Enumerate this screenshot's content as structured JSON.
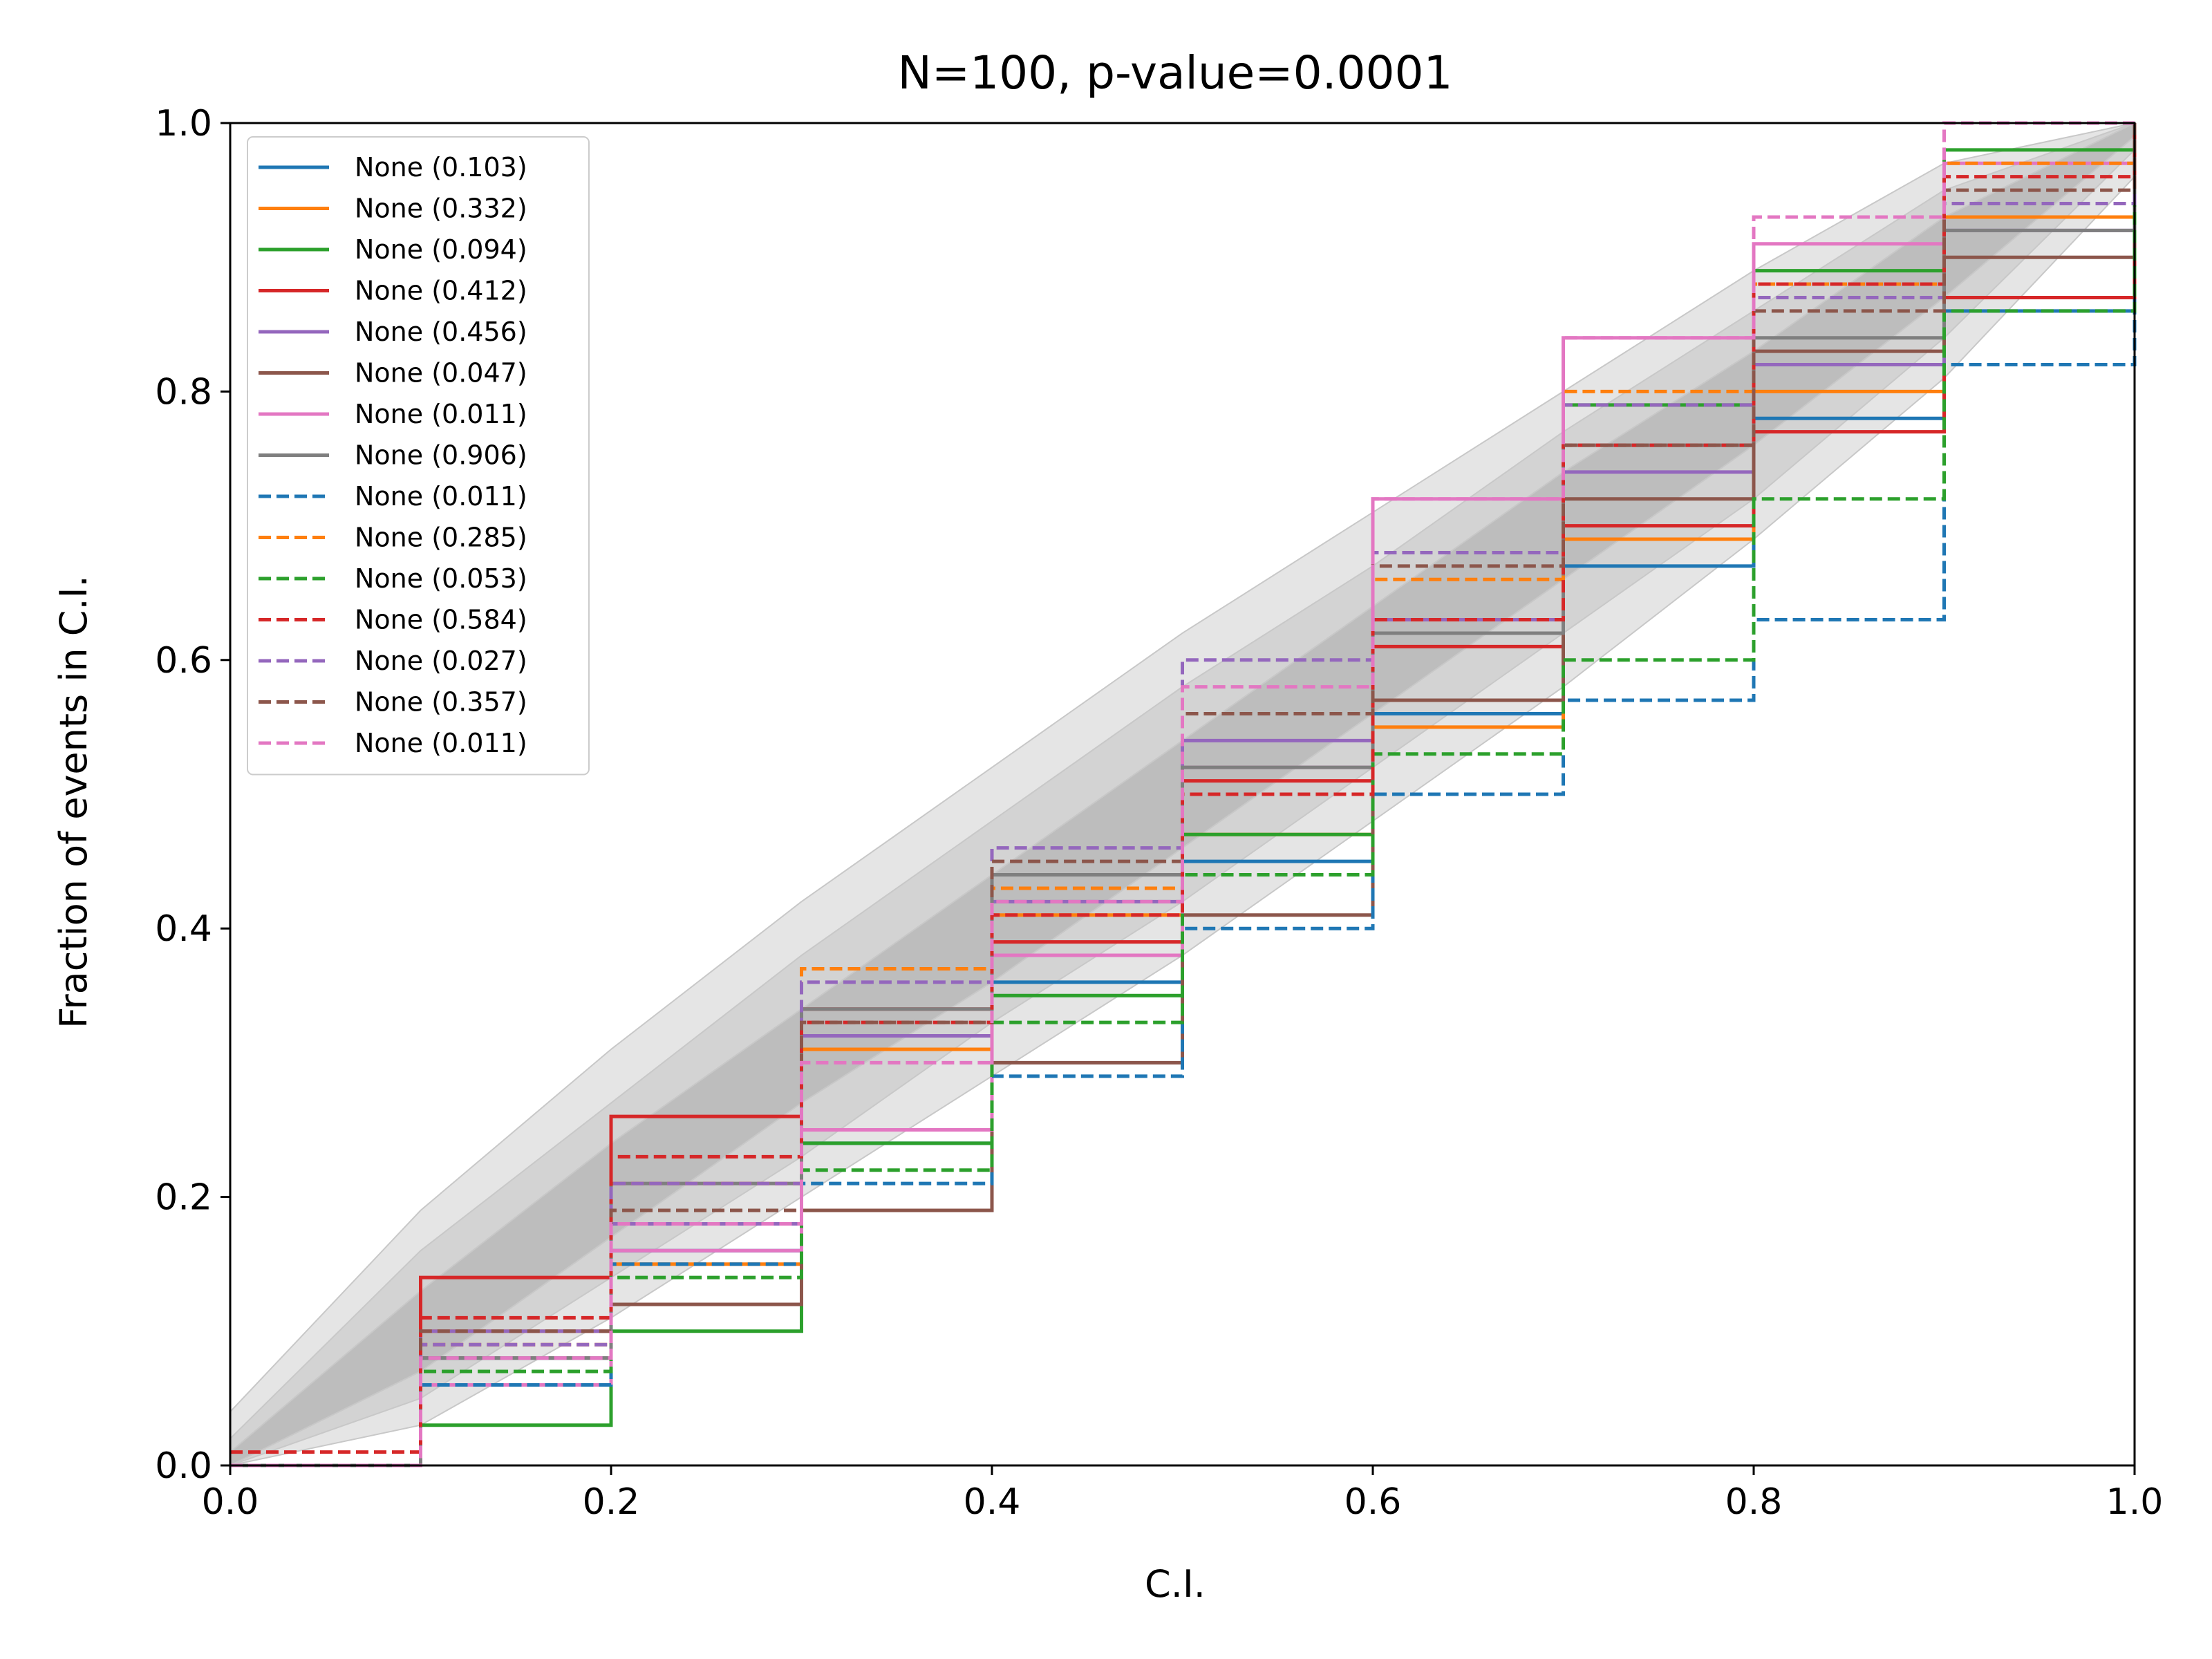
{
  "chart_data": {
    "type": "line",
    "title": "N=100, p-value=0.0001",
    "xlabel": "C.I.",
    "ylabel": "Fraction of events in C.I.",
    "xlim": [
      0.0,
      1.0
    ],
    "ylim": [
      0.0,
      1.0
    ],
    "xticks": [
      "0.0",
      "0.2",
      "0.4",
      "0.6",
      "0.8",
      "1.0"
    ],
    "yticks": [
      "0.0",
      "0.2",
      "0.4",
      "0.6",
      "0.8",
      "1.0"
    ],
    "grid": false,
    "legend_position": "upper-left",
    "bands": [
      {
        "name": "outer",
        "color": "#e5e5e5",
        "lower": [
          [
            0,
            0
          ],
          [
            0.1,
            0.03
          ],
          [
            0.2,
            0.11
          ],
          [
            0.3,
            0.2
          ],
          [
            0.4,
            0.29
          ],
          [
            0.5,
            0.38
          ],
          [
            0.6,
            0.48
          ],
          [
            0.7,
            0.58
          ],
          [
            0.8,
            0.69
          ],
          [
            0.9,
            0.81
          ],
          [
            1,
            0.96
          ]
        ],
        "upper": [
          [
            0,
            0.04
          ],
          [
            0.1,
            0.19
          ],
          [
            0.2,
            0.31
          ],
          [
            0.3,
            0.42
          ],
          [
            0.4,
            0.52
          ],
          [
            0.5,
            0.62
          ],
          [
            0.6,
            0.71
          ],
          [
            0.7,
            0.8
          ],
          [
            0.8,
            0.89
          ],
          [
            0.9,
            0.97
          ],
          [
            1,
            1
          ]
        ]
      },
      {
        "name": "middle",
        "color": "#d3d3d3",
        "lower": [
          [
            0,
            0
          ],
          [
            0.1,
            0.05
          ],
          [
            0.2,
            0.14
          ],
          [
            0.3,
            0.23
          ],
          [
            0.4,
            0.33
          ],
          [
            0.5,
            0.42
          ],
          [
            0.6,
            0.52
          ],
          [
            0.7,
            0.62
          ],
          [
            0.8,
            0.72
          ],
          [
            0.9,
            0.84
          ],
          [
            1,
            0.98
          ]
        ],
        "upper": [
          [
            0,
            0.02
          ],
          [
            0.1,
            0.16
          ],
          [
            0.2,
            0.27
          ],
          [
            0.3,
            0.38
          ],
          [
            0.4,
            0.48
          ],
          [
            0.5,
            0.58
          ],
          [
            0.6,
            0.67
          ],
          [
            0.7,
            0.77
          ],
          [
            0.8,
            0.86
          ],
          [
            0.9,
            0.95
          ],
          [
            1,
            1
          ]
        ]
      },
      {
        "name": "inner",
        "color": "#bdbdbd",
        "lower": [
          [
            0,
            0
          ],
          [
            0.1,
            0.07
          ],
          [
            0.2,
            0.17
          ],
          [
            0.3,
            0.27
          ],
          [
            0.4,
            0.36
          ],
          [
            0.5,
            0.46
          ],
          [
            0.6,
            0.56
          ],
          [
            0.7,
            0.66
          ],
          [
            0.8,
            0.76
          ],
          [
            0.9,
            0.87
          ],
          [
            1,
            0.99
          ]
        ],
        "upper": [
          [
            0,
            0.01
          ],
          [
            0.1,
            0.13
          ],
          [
            0.2,
            0.24
          ],
          [
            0.3,
            0.34
          ],
          [
            0.4,
            0.44
          ],
          [
            0.5,
            0.54
          ],
          [
            0.6,
            0.64
          ],
          [
            0.7,
            0.74
          ],
          [
            0.8,
            0.83
          ],
          [
            0.9,
            0.93
          ],
          [
            1,
            1
          ]
        ]
      }
    ],
    "series": [
      {
        "name": "None (0.103)",
        "color": "#1f77b4",
        "dash": "solid",
        "points": [
          [
            0,
            0
          ],
          [
            0.1,
            0.08
          ],
          [
            0.2,
            0.16
          ],
          [
            0.3,
            0.24
          ],
          [
            0.4,
            0.36
          ],
          [
            0.5,
            0.45
          ],
          [
            0.6,
            0.56
          ],
          [
            0.7,
            0.67
          ],
          [
            0.8,
            0.78
          ],
          [
            0.9,
            0.86
          ],
          [
            1,
            0.97
          ]
        ]
      },
      {
        "name": "None (0.332)",
        "color": "#ff7f0e",
        "dash": "solid",
        "points": [
          [
            0,
            0
          ],
          [
            0.1,
            0.1
          ],
          [
            0.2,
            0.15
          ],
          [
            0.3,
            0.31
          ],
          [
            0.4,
            0.41
          ],
          [
            0.5,
            0.47
          ],
          [
            0.6,
            0.55
          ],
          [
            0.7,
            0.69
          ],
          [
            0.8,
            0.8
          ],
          [
            0.9,
            0.93
          ],
          [
            1,
            1
          ]
        ]
      },
      {
        "name": "None (0.094)",
        "color": "#2ca02c",
        "dash": "solid",
        "points": [
          [
            0,
            0
          ],
          [
            0.1,
            0.03
          ],
          [
            0.2,
            0.1
          ],
          [
            0.3,
            0.24
          ],
          [
            0.4,
            0.35
          ],
          [
            0.5,
            0.47
          ],
          [
            0.6,
            0.63
          ],
          [
            0.7,
            0.79
          ],
          [
            0.8,
            0.89
          ],
          [
            0.9,
            0.98
          ],
          [
            1,
            1
          ]
        ]
      },
      {
        "name": "None (0.412)",
        "color": "#d62728",
        "dash": "solid",
        "points": [
          [
            0,
            0
          ],
          [
            0.1,
            0.14
          ],
          [
            0.2,
            0.26
          ],
          [
            0.3,
            0.34
          ],
          [
            0.4,
            0.39
          ],
          [
            0.5,
            0.51
          ],
          [
            0.6,
            0.61
          ],
          [
            0.7,
            0.7
          ],
          [
            0.8,
            0.77
          ],
          [
            0.9,
            0.87
          ],
          [
            1,
            1
          ]
        ]
      },
      {
        "name": "None (0.456)",
        "color": "#9467bd",
        "dash": "solid",
        "points": [
          [
            0,
            0
          ],
          [
            0.1,
            0.1
          ],
          [
            0.2,
            0.18
          ],
          [
            0.3,
            0.32
          ],
          [
            0.4,
            0.42
          ],
          [
            0.5,
            0.54
          ],
          [
            0.6,
            0.63
          ],
          [
            0.7,
            0.74
          ],
          [
            0.8,
            0.82
          ],
          [
            0.9,
            0.92
          ],
          [
            1,
            1
          ]
        ]
      },
      {
        "name": "None (0.047)",
        "color": "#8c564b",
        "dash": "solid",
        "points": [
          [
            0,
            0
          ],
          [
            0.1,
            0.08
          ],
          [
            0.2,
            0.12
          ],
          [
            0.3,
            0.19
          ],
          [
            0.4,
            0.3
          ],
          [
            0.5,
            0.41
          ],
          [
            0.6,
            0.57
          ],
          [
            0.7,
            0.72
          ],
          [
            0.8,
            0.83
          ],
          [
            0.9,
            0.9
          ],
          [
            1,
            1
          ]
        ]
      },
      {
        "name": "None (0.011)",
        "color": "#e377c2",
        "dash": "solid",
        "points": [
          [
            0,
            0
          ],
          [
            0.1,
            0.06
          ],
          [
            0.2,
            0.16
          ],
          [
            0.3,
            0.25
          ],
          [
            0.4,
            0.38
          ],
          [
            0.5,
            0.52
          ],
          [
            0.6,
            0.72
          ],
          [
            0.7,
            0.84
          ],
          [
            0.8,
            0.91
          ],
          [
            0.9,
            0.97
          ],
          [
            1,
            1
          ]
        ]
      },
      {
        "name": "None (0.906)",
        "color": "#7f7f7f",
        "dash": "solid",
        "points": [
          [
            0,
            0
          ],
          [
            0.1,
            0.08
          ],
          [
            0.2,
            0.21
          ],
          [
            0.3,
            0.34
          ],
          [
            0.4,
            0.44
          ],
          [
            0.5,
            0.52
          ],
          [
            0.6,
            0.62
          ],
          [
            0.7,
            0.76
          ],
          [
            0.8,
            0.84
          ],
          [
            0.9,
            0.92
          ],
          [
            1,
            1
          ]
        ]
      },
      {
        "name": "None (0.011)",
        "color": "#1f77b4",
        "dash": "dashed",
        "points": [
          [
            0,
            0
          ],
          [
            0.1,
            0.06
          ],
          [
            0.2,
            0.15
          ],
          [
            0.3,
            0.21
          ],
          [
            0.4,
            0.29
          ],
          [
            0.5,
            0.4
          ],
          [
            0.6,
            0.5
          ],
          [
            0.7,
            0.57
          ],
          [
            0.8,
            0.63
          ],
          [
            0.9,
            0.82
          ],
          [
            1,
            0.97
          ]
        ]
      },
      {
        "name": "None (0.285)",
        "color": "#ff7f0e",
        "dash": "dashed",
        "points": [
          [
            0,
            0
          ],
          [
            0.1,
            0.09
          ],
          [
            0.2,
            0.21
          ],
          [
            0.3,
            0.37
          ],
          [
            0.4,
            0.43
          ],
          [
            0.5,
            0.56
          ],
          [
            0.6,
            0.66
          ],
          [
            0.7,
            0.8
          ],
          [
            0.8,
            0.88
          ],
          [
            0.9,
            0.97
          ],
          [
            1,
            1
          ]
        ]
      },
      {
        "name": "None (0.053)",
        "color": "#2ca02c",
        "dash": "dashed",
        "points": [
          [
            0,
            0
          ],
          [
            0.1,
            0.07
          ],
          [
            0.2,
            0.14
          ],
          [
            0.3,
            0.22
          ],
          [
            0.4,
            0.33
          ],
          [
            0.5,
            0.44
          ],
          [
            0.6,
            0.53
          ],
          [
            0.7,
            0.6
          ],
          [
            0.8,
            0.72
          ],
          [
            0.9,
            0.86
          ],
          [
            1,
            1
          ]
        ]
      },
      {
        "name": "None (0.584)",
        "color": "#d62728",
        "dash": "dashed",
        "points": [
          [
            0,
            0.01
          ],
          [
            0.1,
            0.11
          ],
          [
            0.2,
            0.23
          ],
          [
            0.3,
            0.33
          ],
          [
            0.4,
            0.41
          ],
          [
            0.5,
            0.5
          ],
          [
            0.6,
            0.63
          ],
          [
            0.7,
            0.76
          ],
          [
            0.8,
            0.88
          ],
          [
            0.9,
            0.96
          ],
          [
            1,
            1
          ]
        ]
      },
      {
        "name": "None (0.027)",
        "color": "#9467bd",
        "dash": "dashed",
        "points": [
          [
            0,
            0
          ],
          [
            0.1,
            0.09
          ],
          [
            0.2,
            0.21
          ],
          [
            0.3,
            0.36
          ],
          [
            0.4,
            0.46
          ],
          [
            0.5,
            0.6
          ],
          [
            0.6,
            0.68
          ],
          [
            0.7,
            0.79
          ],
          [
            0.8,
            0.87
          ],
          [
            0.9,
            0.94
          ],
          [
            1,
            1
          ]
        ]
      },
      {
        "name": "None (0.357)",
        "color": "#8c564b",
        "dash": "dashed",
        "points": [
          [
            0,
            0
          ],
          [
            0.1,
            0.1
          ],
          [
            0.2,
            0.19
          ],
          [
            0.3,
            0.33
          ],
          [
            0.4,
            0.45
          ],
          [
            0.5,
            0.56
          ],
          [
            0.6,
            0.67
          ],
          [
            0.7,
            0.76
          ],
          [
            0.8,
            0.86
          ],
          [
            0.9,
            0.95
          ],
          [
            1,
            1
          ]
        ]
      },
      {
        "name": "None (0.011)",
        "color": "#e377c2",
        "dash": "dashed",
        "points": [
          [
            0,
            0
          ],
          [
            0.1,
            0.08
          ],
          [
            0.2,
            0.18
          ],
          [
            0.3,
            0.3
          ],
          [
            0.4,
            0.42
          ],
          [
            0.5,
            0.58
          ],
          [
            0.6,
            0.72
          ],
          [
            0.7,
            0.84
          ],
          [
            0.8,
            0.93
          ],
          [
            0.9,
            1
          ],
          [
            1,
            1
          ]
        ]
      }
    ]
  }
}
